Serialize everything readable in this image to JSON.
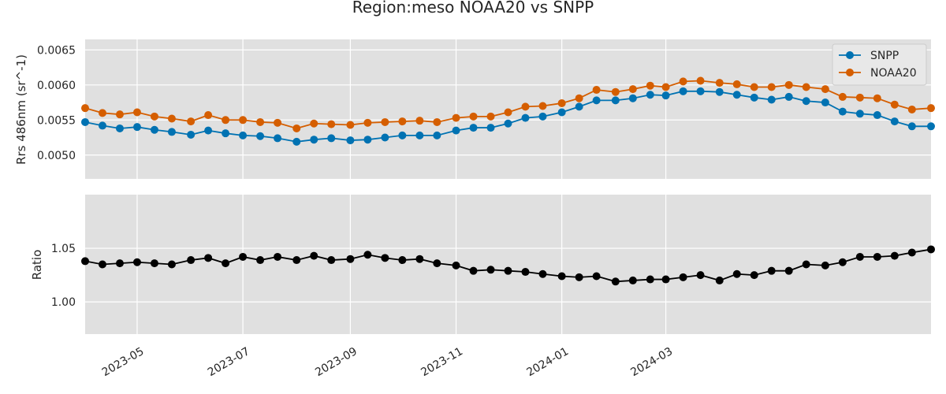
{
  "title": "Region:meso NOAA20 vs SNPP",
  "colors": {
    "snpp": "#0072b2",
    "noaa20": "#d55e00",
    "ratio": "#000000",
    "panel_bg": "#e0e0e0",
    "grid": "#ffffff"
  },
  "chart_data": [
    {
      "type": "line",
      "ylabel": "Rrs 486nm (sr^-1)",
      "ylim": [
        0.00466,
        0.00665
      ],
      "yticks": [
        "0.0050",
        "0.0055",
        "0.0060",
        "0.0065"
      ],
      "ytick_values": [
        0.005,
        0.0055,
        0.006,
        0.0065
      ],
      "grid": true,
      "legend": "top-right",
      "series": [
        {
          "name": "SNPP",
          "color": "#0072b2",
          "values": [
            0.00547,
            0.00542,
            0.00538,
            0.0054,
            0.00536,
            0.00533,
            0.00529,
            0.00535,
            0.00531,
            0.00528,
            0.00527,
            0.00524,
            0.00519,
            0.00522,
            0.00524,
            0.00521,
            0.00522,
            0.00525,
            0.00528,
            0.00528,
            0.00528,
            0.00535,
            0.00539,
            0.00539,
            0.00545,
            0.00553,
            0.00555,
            0.00561,
            0.00569,
            0.00578,
            0.00578,
            0.00581,
            0.00586,
            0.00585,
            0.00591,
            0.00591,
            0.0059,
            0.00586,
            0.00582,
            0.00579,
            0.00583,
            0.00577,
            0.00575,
            0.00562,
            0.00559,
            0.00557,
            0.00548,
            0.00541,
            0.00541
          ]
        },
        {
          "name": "NOAA20",
          "color": "#d55e00",
          "values": [
            0.00567,
            0.0056,
            0.00558,
            0.00561,
            0.00555,
            0.00552,
            0.00548,
            0.00557,
            0.0055,
            0.0055,
            0.00547,
            0.00546,
            0.00538,
            0.00545,
            0.00544,
            0.00543,
            0.00546,
            0.00547,
            0.00548,
            0.00549,
            0.00547,
            0.00553,
            0.00555,
            0.00555,
            0.00561,
            0.00569,
            0.0057,
            0.00574,
            0.00581,
            0.00593,
            0.0059,
            0.00594,
            0.00599,
            0.00597,
            0.00605,
            0.00606,
            0.00603,
            0.00601,
            0.00597,
            0.00597,
            0.006,
            0.00597,
            0.00594,
            0.00583,
            0.00582,
            0.00581,
            0.00572,
            0.00565,
            0.00567
          ]
        }
      ]
    },
    {
      "type": "line",
      "ylabel": "Ratio",
      "ylim": [
        0.97,
        1.1
      ],
      "yticks": [
        "1.00",
        "1.05"
      ],
      "ytick_values": [
        1.0,
        1.05
      ],
      "grid": true,
      "series": [
        {
          "color": "#000000",
          "values": [
            1.038,
            1.035,
            1.036,
            1.037,
            1.036,
            1.035,
            1.039,
            1.041,
            1.036,
            1.042,
            1.039,
            1.042,
            1.039,
            1.043,
            1.039,
            1.04,
            1.044,
            1.041,
            1.039,
            1.04,
            1.036,
            1.034,
            1.029,
            1.03,
            1.029,
            1.028,
            1.026,
            1.024,
            1.023,
            1.024,
            1.019,
            1.02,
            1.021,
            1.021,
            1.023,
            1.025,
            1.02,
            1.026,
            1.025,
            1.029,
            1.029,
            1.035,
            1.034,
            1.037,
            1.042,
            1.042,
            1.043,
            1.046,
            1.049
          ]
        }
      ]
    }
  ],
  "x": [
    "2023-04-01",
    "2023-04-11",
    "2023-04-21",
    "2023-05-01",
    "2023-05-11",
    "2023-05-21",
    "2023-06-01",
    "2023-06-11",
    "2023-06-21",
    "2023-07-01",
    "2023-07-11",
    "2023-07-21",
    "2023-08-01",
    "2023-08-11",
    "2023-08-21",
    "2023-09-01",
    "2023-09-11",
    "2023-09-21",
    "2023-10-01",
    "2023-10-11",
    "2023-10-21",
    "2023-11-01",
    "2023-11-11",
    "2023-11-21",
    "2023-12-01",
    "2023-12-11",
    "2023-12-21",
    "2024-01-01",
    "2024-01-11",
    "2024-01-21",
    "2024-02-01",
    "2024-02-11",
    "2024-02-21",
    "2024-03-01",
    "2024-03-11",
    "2024-03-21",
    "2024-04-01",
    "2024-04-11",
    "2024-04-21",
    "2024-05-01",
    "2024-05-11",
    "2024-05-21",
    "2024-06-01",
    "2024-06-11",
    "2024-06-21",
    "2024-07-01",
    "2024-07-11",
    "2024-07-21",
    "2024-08-01"
  ],
  "xlim": [
    "2023-04-01",
    "2024-08-01"
  ],
  "xticks": [
    "2023-05",
    "2023-07",
    "2023-09",
    "2023-11",
    "2024-01",
    "2024-03"
  ],
  "xtick_dates": [
    "2023-05-01",
    "2023-07-01",
    "2023-09-01",
    "2023-11-01",
    "2024-01-01",
    "2024-03-01"
  ]
}
